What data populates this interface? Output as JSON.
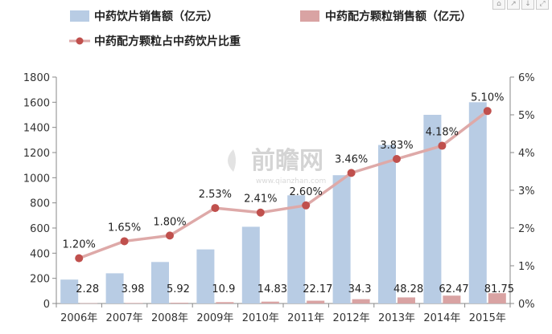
{
  "chart_data": {
    "type": "bar+line",
    "categories": [
      "2006年",
      "2007年",
      "2008年",
      "2009年",
      "2010年",
      "2011年",
      "2012年",
      "2013年",
      "2014年",
      "2015年"
    ],
    "series": [
      {
        "name": "中药饮片销售额（亿元）",
        "type": "bar",
        "axis": "left",
        "values": [
          190,
          240,
          330,
          430,
          610,
          860,
          1020,
          1260,
          1500,
          1600
        ],
        "color": "#b8cce4"
      },
      {
        "name": "中药配方颗粒销售额（亿元）",
        "type": "bar",
        "axis": "left",
        "values": [
          2.28,
          3.98,
          5.92,
          10.9,
          14.83,
          22.17,
          34.3,
          48.28,
          62.47,
          81.75
        ],
        "labels": [
          "2.28",
          "3.98",
          "5.92",
          "10.9",
          "14.83",
          "22.17",
          "34.3",
          "48.28",
          "62.47",
          "81.75"
        ],
        "color": "#d9a3a3"
      },
      {
        "name": "中药配方颗粒占中药饮片比重",
        "type": "line",
        "axis": "right",
        "values": [
          1.2,
          1.65,
          1.8,
          2.53,
          2.41,
          2.6,
          3.46,
          3.83,
          4.18,
          5.1
        ],
        "labels": [
          "1.20%",
          "1.65%",
          "1.80%",
          "2.53%",
          "2.41%",
          "2.60%",
          "3.46%",
          "3.83%",
          "4.18%",
          "5.10%"
        ],
        "color": "#c0504d",
        "line_color": "#dea9a8"
      }
    ],
    "y_left": {
      "min": 0,
      "max": 1800,
      "step": 200,
      "ticks": [
        "0",
        "200",
        "400",
        "600",
        "800",
        "1000",
        "1200",
        "1400",
        "1600",
        "1800"
      ]
    },
    "y_right": {
      "min": 0,
      "max": 6,
      "step": 1,
      "ticks": [
        "0%",
        "1%",
        "2%",
        "3%",
        "4%",
        "5%",
        "6%"
      ]
    },
    "grid": false,
    "legend": "top",
    "watermark": "前瞻网",
    "watermark_sub": "www.qianzhan.com"
  },
  "corner_icons": [
    "share-icon",
    "expand-icon",
    "download-icon",
    "fullscreen-icon"
  ]
}
